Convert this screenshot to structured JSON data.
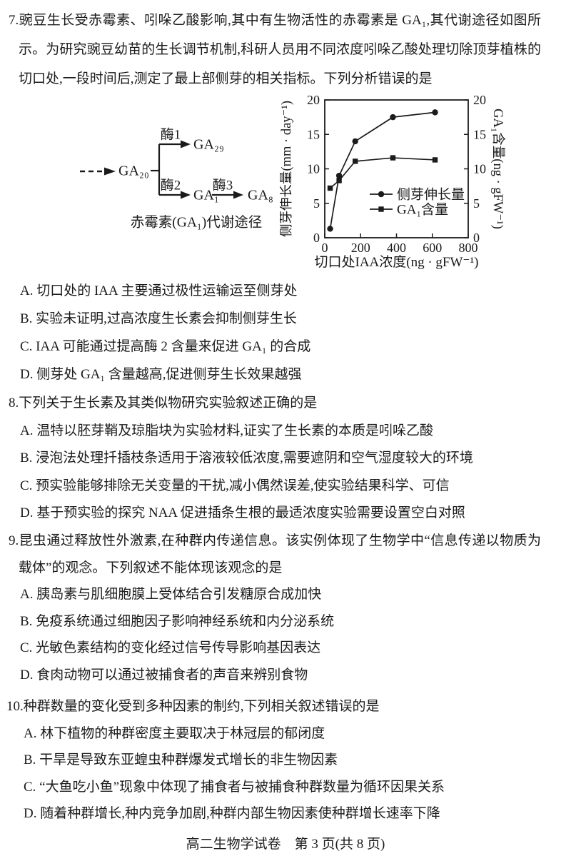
{
  "page": {
    "footer": "高二生物学试卷　第 3 页(共 8 页)"
  },
  "q7": {
    "number": "7.",
    "stem": "豌豆生长受赤霉素、吲哚乙酸影响,其中有生物活性的赤霉素是 GA₁,其代谢途径如图所示。为研究豌豆幼苗的生长调节机制,科研人员用不同浓度吲哚乙酸处理切除顶芽植株的切口处,一段时间后,测定了最上部侧芽的相关指标。下列分析错误的是",
    "options": [
      "A. 切口处的 IAA 主要通过极性运输运至侧芽处",
      "B. 实验未证明,过高浓度生长素会抑制侧芽生长",
      "C. IAA 可能通过提高酶 2 含量来促进 GA₁ 的合成",
      "D. 侧芽处 GA₁ 含量越高,促进侧芽生长效果越强"
    ]
  },
  "pathway": {
    "source": "GA₂₀",
    "enzyme1": "酶1",
    "product1": "GA₂₉",
    "enzyme2": "酶2",
    "product2": "GA₁",
    "enzyme3": "酶3",
    "product3": "GA₈",
    "caption": "赤霉素(GA₁)代谢途径"
  },
  "chart_data": {
    "type": "line",
    "x": [
      30,
      80,
      170,
      380,
      615
    ],
    "series": [
      {
        "name": "侧芽伸长量",
        "marker": "circle",
        "values": [
          1.3,
          9,
          14,
          17.5,
          18.2
        ]
      },
      {
        "name": "GA₁含量",
        "marker": "square",
        "values": [
          7.2,
          8.3,
          11.1,
          11.6,
          11.3
        ]
      }
    ],
    "xlabel": "切口处IAA浓度(ng · gFW⁻¹)",
    "ylabel_left": "侧芽伸长量(mm · day⁻¹)",
    "ylabel_right": "GA₁含量(ng · gFW⁻¹)",
    "xlim": [
      0,
      800
    ],
    "ylim": [
      0,
      20
    ],
    "xticks": [
      0,
      200,
      400,
      600,
      800
    ],
    "yticks": [
      0,
      5,
      10,
      15,
      20
    ],
    "grid": false,
    "legend_position": "inside lower right"
  },
  "q8": {
    "number": "8.",
    "stem": "下列关于生长素及其类似物研究实验叙述正确的是",
    "options": [
      "A. 温特以胚芽鞘及琼脂块为实验材料,证实了生长素的本质是吲哚乙酸",
      "B. 浸泡法处理扦插枝条适用于溶液较低浓度,需要遮阴和空气湿度较大的环境",
      "C. 预实验能够排除无关变量的干扰,减小偶然误差,使实验结果科学、可信",
      "D. 基于预实验的探究 NAA 促进插条生根的最适浓度实验需要设置空白对照"
    ]
  },
  "q9": {
    "number": "9.",
    "stem": "昆虫通过释放性外激素,在种群内传递信息。该实例体现了生物学中“信息传递以物质为载体”的观念。下列叙述不能体现该观念的是",
    "options": [
      "A. 胰岛素与肌细胞膜上受体结合引发糖原合成加快",
      "B. 免疫系统通过细胞因子影响神经系统和内分泌系统",
      "C. 光敏色素结构的变化经过信号传导影响基因表达",
      "D. 食肉动物可以通过被捕食者的声音来辨别食物"
    ]
  },
  "q10": {
    "number": "10.",
    "stem": "种群数量的变化受到多种因素的制约,下列相关叙述错误的是",
    "options": [
      "A. 林下植物的种群密度主要取决于林冠层的郁闭度",
      "B. 干旱是导致东亚蝗虫种群爆发式增长的非生物因素",
      "C. “大鱼吃小鱼”现象中体现了捕食者与被捕食种群数量为循环因果关系",
      "D. 随着种群增长,种内竞争加剧,种群内部生物因素使种群增长速率下降"
    ]
  }
}
